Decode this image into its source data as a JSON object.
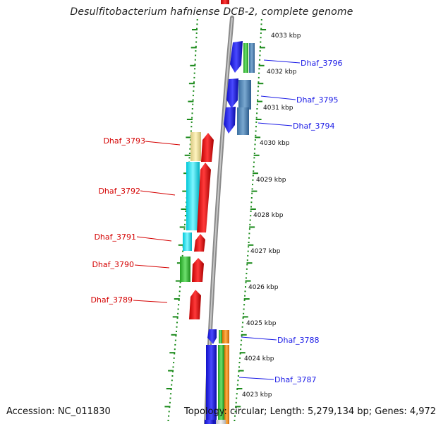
{
  "title": "Desulfitobacterium hafniense DCB-2, complete genome",
  "footer": {
    "accession": "Accession: NC_011830",
    "summary": "Topology: circular; Length: 5,279,134 bp; Genes: 4,972"
  },
  "colors": {
    "backbone": "#8a8a8a",
    "tick": "#1a8a1a",
    "forward_label": "#1a1ae6",
    "reverse_label": "#d40000"
  },
  "kbp_labels": [
    "4033 kbp",
    "4032 kbp",
    "4031 kbp",
    "4030 kbp",
    "4029 kbp",
    "4028 kbp",
    "4027 kbp",
    "4026 kbp",
    "4025 kbp",
    "4024 kbp",
    "4023 kbp"
  ],
  "forward_genes": [
    "Dhaf_3796",
    "Dhaf_3795",
    "Dhaf_3794",
    "Dhaf_3788",
    "Dhaf_3787"
  ],
  "reverse_genes": [
    "Dhaf_3793",
    "Dhaf_3792",
    "Dhaf_3791",
    "Dhaf_3790",
    "Dhaf_3789"
  ]
}
